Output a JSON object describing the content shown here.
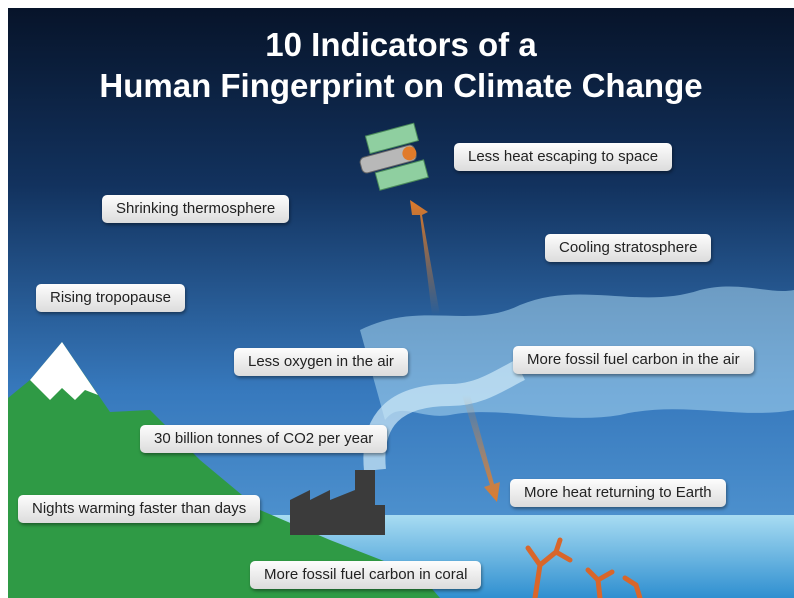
{
  "title": {
    "lines": [
      "10 Indicators of a",
      "Human Fingerprint on Climate Change"
    ]
  },
  "labels": [
    "Less heat escaping to space",
    "Shrinking thermosphere",
    "Cooling stratosphere",
    "Rising tropopause",
    "Less oxygen in the air",
    "More fossil fuel carbon in the air",
    "30 billion tonnes of CO2 per year",
    "More heat returning to Earth",
    "Nights warming faster than days",
    "More fossil fuel carbon in coral"
  ]
}
